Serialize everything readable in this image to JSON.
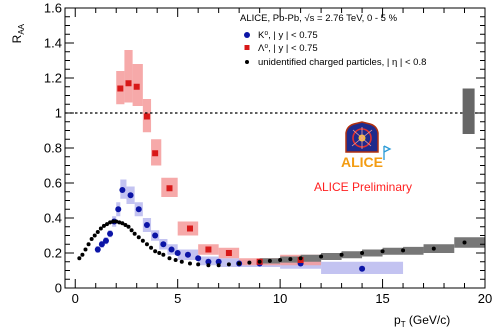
{
  "chart_data": {
    "type": "scatter",
    "xlim": [
      -0.5,
      20
    ],
    "ylim": [
      0,
      1.6
    ],
    "x_ticks": [
      0,
      5,
      10,
      15,
      20
    ],
    "y_ticks": [
      0,
      0.2,
      0.4,
      0.6,
      0.8,
      1,
      1.2,
      1.4,
      1.6
    ],
    "x_tick_labels": [
      "0",
      "5",
      "10",
      "15",
      "20"
    ],
    "y_tick_labels": [
      "0",
      "0.2",
      "0.4",
      "0.6",
      "0.8",
      "1",
      "1.2",
      "1.4",
      "1.6"
    ],
    "ylabel": {
      "main": "R",
      "sub": "AA"
    },
    "xlabel": {
      "main": "p",
      "sub": "T",
      "unit": " (GeV/c)"
    },
    "reference_line_y": 1,
    "normalization_box": {
      "x": 19.2,
      "y_low": 0.88,
      "y_high": 1.14
    },
    "legend": {
      "header": "ALICE, Pb-Pb, √s = 2.76 TeV, 0 - 5 %",
      "entries": [
        {
          "label": "K⁰, | y | < 0.75"
        },
        {
          "label": "Λ⁰, | y | < 0.75"
        },
        {
          "label": "unidentified charged particles, | η | < 0.8"
        }
      ]
    },
    "logo_text": "ALICE",
    "preliminary_text": "ALICE Preliminary",
    "colors": {
      "k0": "#0b14a6",
      "k0_band": "#b8b8ee",
      "lambda": "#d81818",
      "lambda_band": "#f59a9a",
      "charged": "#000000",
      "charged_band": "#777777",
      "preliminary": "#ff2020",
      "logo_orange": "#f39c12"
    },
    "series": [
      {
        "name": "K⁰, | y | < 0.75",
        "marker": "circle",
        "points": [
          [
            1.1,
            0.22
          ],
          [
            1.3,
            0.25
          ],
          [
            1.5,
            0.27
          ],
          [
            1.7,
            0.31
          ],
          [
            1.9,
            0.38
          ],
          [
            2.1,
            0.45
          ],
          [
            2.3,
            0.56
          ],
          [
            2.7,
            0.53
          ],
          [
            3.1,
            0.45
          ],
          [
            3.5,
            0.36
          ],
          [
            3.9,
            0.3
          ],
          [
            4.3,
            0.25
          ],
          [
            4.7,
            0.22
          ],
          [
            5.0,
            0.2
          ],
          [
            5.5,
            0.19
          ],
          [
            6.0,
            0.17
          ],
          [
            6.5,
            0.15
          ],
          [
            7.0,
            0.15
          ],
          [
            8.0,
            0.14
          ],
          [
            9.0,
            0.14
          ],
          [
            11.0,
            0.14
          ],
          [
            14.0,
            0.11
          ]
        ],
        "bands": [
          [
            1.0,
            1.2,
            0.2,
            0.24
          ],
          [
            1.2,
            1.4,
            0.23,
            0.27
          ],
          [
            1.4,
            1.6,
            0.25,
            0.29
          ],
          [
            1.6,
            1.8,
            0.29,
            0.33
          ],
          [
            1.8,
            2.0,
            0.35,
            0.41
          ],
          [
            2.0,
            2.2,
            0.41,
            0.49
          ],
          [
            2.2,
            2.5,
            0.51,
            0.62
          ],
          [
            2.5,
            2.9,
            0.48,
            0.58
          ],
          [
            2.9,
            3.3,
            0.41,
            0.49
          ],
          [
            3.3,
            3.7,
            0.32,
            0.4
          ],
          [
            3.7,
            4.1,
            0.27,
            0.33
          ],
          [
            4.1,
            4.5,
            0.22,
            0.28
          ],
          [
            4.5,
            5.0,
            0.19,
            0.25
          ],
          [
            5.0,
            6.0,
            0.16,
            0.22
          ],
          [
            6.0,
            7.0,
            0.13,
            0.18
          ],
          [
            7.0,
            8.0,
            0.12,
            0.17
          ],
          [
            8.0,
            10.0,
            0.12,
            0.16
          ],
          [
            10.0,
            12.0,
            0.11,
            0.16
          ],
          [
            12.0,
            16.0,
            0.08,
            0.15
          ]
        ]
      },
      {
        "name": "Λ⁰, | y | < 0.75",
        "marker": "square",
        "points": [
          [
            2.2,
            1.14
          ],
          [
            2.6,
            1.17
          ],
          [
            3.0,
            1.15
          ],
          [
            3.5,
            0.98
          ],
          [
            3.9,
            0.77
          ],
          [
            4.6,
            0.57
          ],
          [
            5.6,
            0.34
          ],
          [
            6.5,
            0.22
          ],
          [
            7.5,
            0.2
          ],
          [
            9.0,
            0.15
          ],
          [
            11.0,
            0.16
          ]
        ],
        "bands": [
          [
            2.0,
            2.4,
            1.05,
            1.24
          ],
          [
            2.4,
            2.8,
            1.06,
            1.36
          ],
          [
            2.8,
            3.3,
            1.04,
            1.28
          ],
          [
            3.3,
            3.7,
            0.89,
            1.08
          ],
          [
            3.7,
            4.2,
            0.7,
            0.85
          ],
          [
            4.2,
            5.0,
            0.52,
            0.63
          ],
          [
            5.0,
            6.0,
            0.3,
            0.38
          ],
          [
            6.0,
            7.0,
            0.19,
            0.25
          ],
          [
            7.0,
            8.0,
            0.17,
            0.23
          ],
          [
            8.0,
            10.0,
            0.13,
            0.17
          ],
          [
            10.0,
            12.0,
            0.13,
            0.19
          ]
        ]
      },
      {
        "name": "unidentified charged particles, | η | < 0.8",
        "marker": "circle",
        "points": [
          [
            0.2,
            0.17
          ],
          [
            0.35,
            0.19
          ],
          [
            0.5,
            0.22
          ],
          [
            0.65,
            0.25
          ],
          [
            0.8,
            0.28
          ],
          [
            0.95,
            0.3
          ],
          [
            1.1,
            0.32
          ],
          [
            1.25,
            0.34
          ],
          [
            1.4,
            0.355
          ],
          [
            1.55,
            0.365
          ],
          [
            1.7,
            0.375
          ],
          [
            1.85,
            0.38
          ],
          [
            2.0,
            0.38
          ],
          [
            2.15,
            0.375
          ],
          [
            2.3,
            0.37
          ],
          [
            2.45,
            0.36
          ],
          [
            2.6,
            0.35
          ],
          [
            2.75,
            0.33
          ],
          [
            2.9,
            0.31
          ],
          [
            3.1,
            0.29
          ],
          [
            3.3,
            0.27
          ],
          [
            3.5,
            0.25
          ],
          [
            3.7,
            0.23
          ],
          [
            3.9,
            0.21
          ],
          [
            4.1,
            0.2
          ],
          [
            4.3,
            0.19
          ],
          [
            4.6,
            0.17
          ],
          [
            4.9,
            0.16
          ],
          [
            5.2,
            0.15
          ],
          [
            5.6,
            0.14
          ],
          [
            6.0,
            0.135
          ],
          [
            6.5,
            0.13
          ],
          [
            7.0,
            0.13
          ],
          [
            7.5,
            0.135
          ],
          [
            8.0,
            0.14
          ],
          [
            8.5,
            0.145
          ],
          [
            9.0,
            0.15
          ],
          [
            9.5,
            0.155
          ],
          [
            10.0,
            0.16
          ],
          [
            10.5,
            0.165
          ],
          [
            11.0,
            0.17
          ],
          [
            12.0,
            0.18
          ],
          [
            13.0,
            0.19
          ],
          [
            14.0,
            0.2
          ],
          [
            15.0,
            0.21
          ],
          [
            16.0,
            0.215
          ],
          [
            17.5,
            0.225
          ],
          [
            19.0,
            0.26
          ]
        ],
        "bands": [
          [
            9.0,
            10.0,
            0.14,
            0.17
          ],
          [
            10.0,
            11.0,
            0.145,
            0.18
          ],
          [
            11.0,
            12.0,
            0.15,
            0.19
          ],
          [
            12.0,
            13.0,
            0.16,
            0.2
          ],
          [
            13.0,
            14.0,
            0.17,
            0.21
          ],
          [
            14.0,
            15.0,
            0.18,
            0.22
          ],
          [
            15.0,
            16.0,
            0.19,
            0.23
          ],
          [
            16.0,
            17.0,
            0.19,
            0.235
          ],
          [
            17.0,
            18.5,
            0.2,
            0.25
          ],
          [
            18.5,
            20.0,
            0.23,
            0.29
          ]
        ]
      }
    ]
  }
}
